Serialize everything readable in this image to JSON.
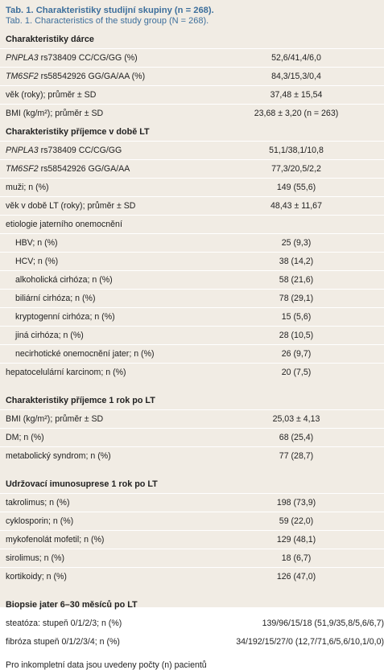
{
  "caption": {
    "title": "Tab. 1. Charakteristiky studijní skupiny (n = 268).",
    "subtitle": "Tab. 1. Characteristics of the study group (N = 268)."
  },
  "sections": [
    {
      "header": "Charakteristiky dárce",
      "rows": [
        {
          "gene": "PNPLA3",
          "label": " rs738409 CC/CG/GG (%)",
          "value": "52,6/41,4/6,0"
        },
        {
          "gene": "TM6SF2",
          "label": " rs58542926 GG/GA/AA (%)",
          "value": "84,3/15,3/0,4"
        },
        {
          "label": "věk (roky); průměr ± SD",
          "value": "37,48 ± 15,54"
        },
        {
          "label": "BMI (kg/m²); průměr ± SD",
          "value": "23,68 ± 3,20 (n = 263)"
        }
      ]
    },
    {
      "header": "Charakteristiky příjemce v době LT",
      "rows": [
        {
          "gene": "PNPLA3",
          "label": " rs738409 CC/CG/GG",
          "value": "51,1/38,1/10,8"
        },
        {
          "gene": "TM6SF2",
          "label": " rs58542926 GG/GA/AA",
          "value": "77,3/20,5/2,2"
        },
        {
          "label": "muži; n (%)",
          "value": "149 (55,6)"
        },
        {
          "label": "věk v době LT (roky); průměr ± SD",
          "value": "48,43 ± 11,67"
        },
        {
          "label": "etiologie jaterního onemocnění",
          "value": ""
        },
        {
          "label": "HBV; n (%)",
          "value": "25 (9,3)",
          "sub": true
        },
        {
          "label": "HCV; n (%)",
          "value": "38 (14,2)",
          "sub": true
        },
        {
          "label": "alkoholická cirhóza; n (%)",
          "value": "58 (21,6)",
          "sub": true
        },
        {
          "label": "biliární cirhóza; n (%)",
          "value": "78 (29,1)",
          "sub": true
        },
        {
          "label": "kryptogenní cirhóza; n (%)",
          "value": "15 (5,6)",
          "sub": true
        },
        {
          "label": "jiná cirhóza; n (%)",
          "value": "28 (10,5)",
          "sub": true
        },
        {
          "label": "necirhotické onemocnění jater; n (%)",
          "value": "26 (9,7)",
          "sub": true
        },
        {
          "label": "hepatocelulární karcinom; n (%)",
          "value": "20 (7,5)"
        }
      ]
    },
    {
      "header": "Charakteristiky příjemce 1 rok po LT",
      "rows": [
        {
          "label": "BMI (kg/m²); průměr ± SD",
          "value": "25,03 ± 4,13"
        },
        {
          "label": "DM; n (%)",
          "value": "68 (25,4)"
        },
        {
          "label": "metabolický syndrom; n (%)",
          "value": "77 (28,7)"
        }
      ]
    },
    {
      "header": "Udržovací imunosuprese 1 rok po LT",
      "rows": [
        {
          "label": "takrolimus; n (%)",
          "value": "198 (73,9)"
        },
        {
          "label": "cyklosporin; n (%)",
          "value": "59 (22,0)"
        },
        {
          "label": "mykofenolát mofetil; n (%)",
          "value": "129 (48,1)"
        },
        {
          "label": "sirolimus; n (%)",
          "value": "18 (6,7)"
        },
        {
          "label": "kortikoidy; n (%)",
          "value": "126 (47,0)"
        }
      ]
    },
    {
      "header": "Biopsie jater 6–30 měsíců po LT",
      "rows": [
        {
          "label": "steatóza: stupeň 0/1/2/3; n (%)",
          "value": "139/96/15/18 (51,9/35,8/5,6/6,7)",
          "wide": true
        },
        {
          "label": "fibróza stupeň 0/1/2/3/4; n (%)",
          "value": "34/192/15/27/0 (12,7/71,6/5,6/10,1/0,0)",
          "wide": true
        }
      ]
    }
  ],
  "footnote": "Pro inkompletní data jsou uvedeny počty (n) pacientů"
}
